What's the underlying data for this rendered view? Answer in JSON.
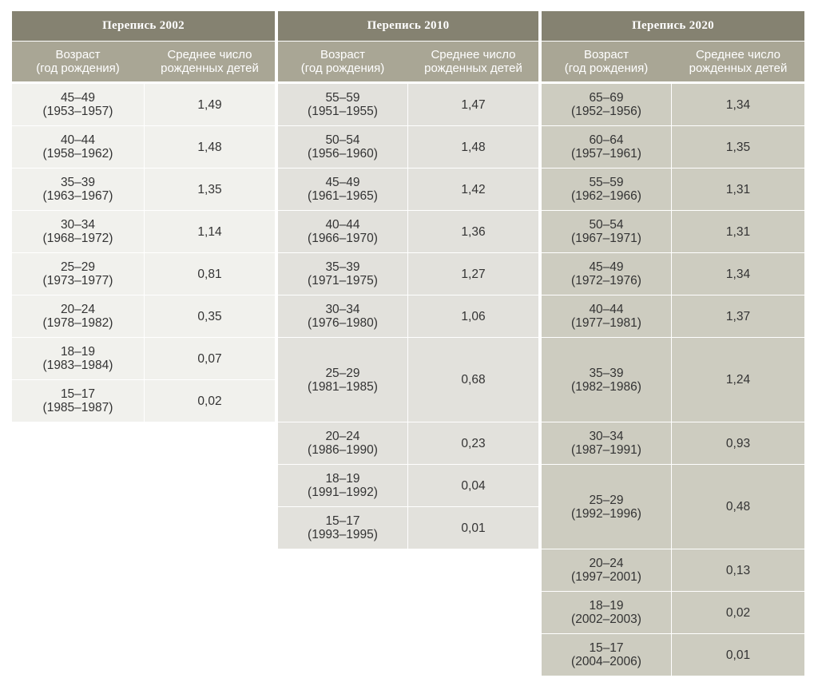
{
  "header": {
    "age_label": "Возраст\n(год рождения)",
    "value_label": "Среднее число\nрожденных детей"
  },
  "census": [
    {
      "title": "Перепись 2002",
      "rows": [
        {
          "age": "45–49\n(1953–1957)",
          "value": "1,49"
        },
        {
          "age": "40–44\n(1958–1962)",
          "value": "1,48"
        },
        {
          "age": "35–39\n(1963–1967)",
          "value": "1,35"
        },
        {
          "age": "30–34\n(1968–1972)",
          "value": "1,14"
        },
        {
          "age": "25–29\n(1973–1977)",
          "value": "0,81"
        },
        {
          "age": "20–24\n(1978–1982)",
          "value": "0,35"
        },
        {
          "age": "18–19\n(1983–1984)",
          "value": "0,07"
        },
        {
          "age": "15–17\n(1985–1987)",
          "value": "0,02"
        }
      ]
    },
    {
      "title": "Перепись 2010",
      "rows": [
        {
          "age": "55–59\n(1951–1955)",
          "value": "1,47"
        },
        {
          "age": "50–54\n(1956–1960)",
          "value": "1,48"
        },
        {
          "age": "45–49\n(1961–1965)",
          "value": "1,42"
        },
        {
          "age": "40–44\n(1966–1970)",
          "value": "1,36"
        },
        {
          "age": "35–39\n(1971–1975)",
          "value": "1,27"
        },
        {
          "age": "30–34\n(1976–1980)",
          "value": "1,06"
        },
        {
          "age": "25–29\n(1981–1985)",
          "value": "0,68"
        },
        {
          "age": "20–24\n(1986–1990)",
          "value": "0,23"
        },
        {
          "age": "18–19\n(1991–1992)",
          "value": "0,04"
        },
        {
          "age": "15–17\n(1993–1995)",
          "value": "0,01"
        }
      ]
    },
    {
      "title": "Перепись 2020",
      "rows": [
        {
          "age": "65–69\n(1952–1956)",
          "value": "1,34"
        },
        {
          "age": "60–64\n(1957–1961)",
          "value": "1,35"
        },
        {
          "age": "55–59\n(1962–1966)",
          "value": "1,31"
        },
        {
          "age": "50–54\n(1967–1971)",
          "value": "1,31"
        },
        {
          "age": "45–49\n(1972–1976)",
          "value": "1,34"
        },
        {
          "age": "40–44\n(1977–1981)",
          "value": "1,37"
        },
        {
          "age": "35–39\n(1982–1986)",
          "value": "1,24"
        },
        {
          "age": "30–34\n(1987–1991)",
          "value": "0,93"
        },
        {
          "age": "25–29\n(1992–1996)",
          "value": "0,48"
        },
        {
          "age": "20–24\n(1997–2001)",
          "value": "0,13"
        },
        {
          "age": "18–19\n(2002–2003)",
          "value": "0,02"
        },
        {
          "age": "15–17\n(2004–2006)",
          "value": "0,01"
        }
      ]
    }
  ]
}
